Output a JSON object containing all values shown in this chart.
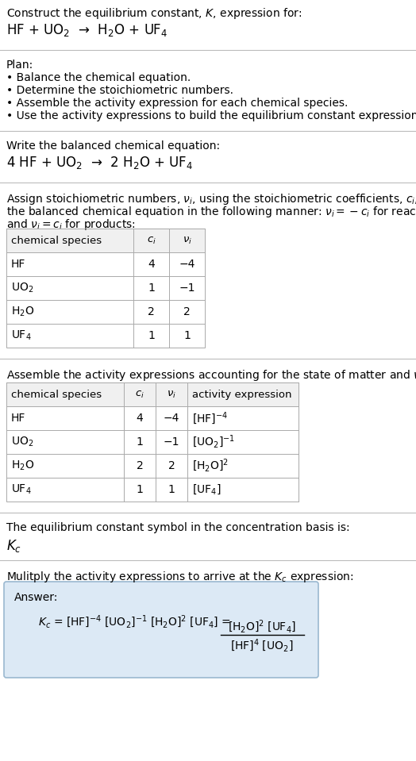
{
  "title_line1": "Construct the equilibrium constant, $K$, expression for:",
  "title_line2": "HF + UO$_2$  →  H$_2$O + UF$_4$",
  "plan_header": "Plan:",
  "plan_bullets": [
    "• Balance the chemical equation.",
    "• Determine the stoichiometric numbers.",
    "• Assemble the activity expression for each chemical species.",
    "• Use the activity expressions to build the equilibrium constant expression."
  ],
  "balanced_header": "Write the balanced chemical equation:",
  "balanced_eq": "4 HF + UO$_2$  →  2 H$_2$O + UF$_4$",
  "stoich_intro1": "Assign stoichiometric numbers, $\\nu_i$, using the stoichiometric coefficients, $c_i$, from",
  "stoich_intro2": "the balanced chemical equation in the following manner: $\\nu_i = -c_i$ for reactants",
  "stoich_intro3": "and $\\nu_i = c_i$ for products:",
  "table1_headers": [
    "chemical species",
    "$c_i$",
    "$\\nu_i$"
  ],
  "table1_rows": [
    [
      "HF",
      "4",
      "−4"
    ],
    [
      "UO$_2$",
      "1",
      "−1"
    ],
    [
      "H$_2$O",
      "2",
      "2"
    ],
    [
      "UF$_4$",
      "1",
      "1"
    ]
  ],
  "activity_intro": "Assemble the activity expressions accounting for the state of matter and $\\nu_i$:",
  "table2_headers": [
    "chemical species",
    "$c_i$",
    "$\\nu_i$",
    "activity expression"
  ],
  "table2_rows": [
    [
      "HF",
      "4",
      "−4",
      "[HF]$^{-4}$"
    ],
    [
      "UO$_2$",
      "1",
      "−1",
      "[UO$_2$]$^{-1}$"
    ],
    [
      "H$_2$O",
      "2",
      "2",
      "[H$_2$O]$^2$"
    ],
    [
      "UF$_4$",
      "1",
      "1",
      "[UF$_4$]"
    ]
  ],
  "kc_text": "The equilibrium constant symbol in the concentration basis is:",
  "kc_symbol": "$K_c$",
  "multiply_text": "Mulitply the activity expressions to arrive at the $K_c$ expression:",
  "answer_label": "Answer:",
  "kc_expr": "$K_c$ = [HF]$^{-4}$ [UO$_2$]$^{-1}$ [H$_2$O]$^2$ [UF$_4$] =",
  "kc_numerator": "[H$_2$O]$^2$ [UF$_4$]",
  "kc_denominator": "[HF]$^4$ [UO$_2$]",
  "bg_color": "#ffffff",
  "table_header_bg": "#f0f0f0",
  "answer_box_bg": "#dce9f5",
  "answer_box_edge": "#9ab8d0",
  "separator_color": "#bbbbbb",
  "text_color": "#000000"
}
